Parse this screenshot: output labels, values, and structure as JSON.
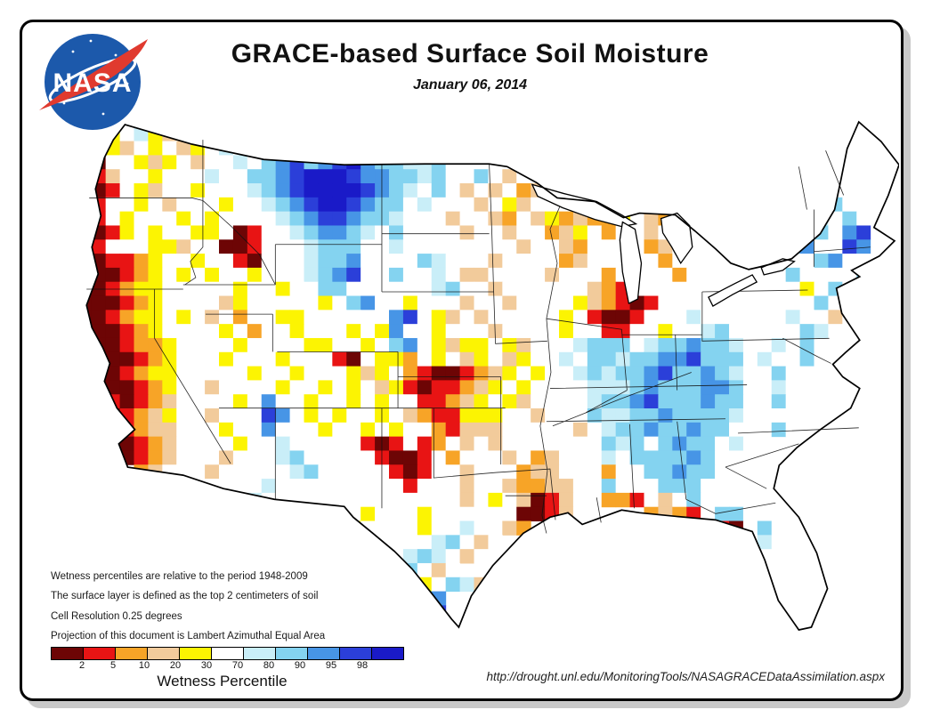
{
  "header": {
    "title": "GRACE-based Surface Soil Moisture",
    "date": "January 06, 2014"
  },
  "logo": {
    "label": "NASA",
    "blue": "#1c59ab",
    "red": "#e03a2f"
  },
  "notes": [
    "Wetness percentiles are relative to the period 1948-2009",
    "The surface layer is defined as the top 2 centimeters of soil",
    "Cell Resolution 0.25 degrees",
    "Projection of this document is Lambert Azimuthal Equal Area"
  ],
  "footer": {
    "url": "http://drought.unl.edu/MonitoringTools/NASAGRACEDataAssimilation.aspx"
  },
  "chart_data": {
    "type": "heatmap",
    "title": "GRACE-based Surface Soil Moisture",
    "date": "January 06, 2014",
    "region": "Continental United States",
    "legend": {
      "label": "Wetness Percentile",
      "ticks": [
        "2",
        "5",
        "10",
        "20",
        "30",
        "70",
        "80",
        "90",
        "95",
        "98"
      ],
      "colors": [
        "#6d0505",
        "#e81414",
        "#f7a427",
        "#f2cb9b",
        "#fcf402",
        "#ffffff",
        "#c9eef8",
        "#84d3f0",
        "#4795e6",
        "#2b3fd9",
        "#1a1ac8"
      ]
    },
    "palette": {
      "M": "#6d0505",
      "R": "#e81414",
      "O": "#f7a427",
      "T": "#f2cb9b",
      "Y": "#fcf402",
      "W": "#ffffff",
      "C": "#c9eef8",
      "L": "#84d3f0",
      "B": "#4795e6",
      "U": "#2b3fd9",
      "N": "#1a1ac8"
    },
    "palette_meaning": "M=<2, R=2-5, O=5-10, T=10-20, Y=20-30, W=30-70, C=70-80, L=80-90, B=90-95, U=95-98, N=>98 wetness percentile; dot=no data/outside US",
    "grid": {
      "cols": 60,
      "rows": 37,
      "cells": [
        "..MTYW..............................................WMWW..",
        "..RTYWCYTWWW....................................YWWTW..",
        "..MRYTWYWTYWCWLLWCLBL.............................YWWCWY..",
        "..RMWWYTYWTWWCWLBULBUNBLLCCLW.....................WYTWWCW.",
        "..MRTWWYWWWCWWLLBUNNNUBBLLCLWWLWTW...............YWWCWLWW.",
        "..MMRWYTWWYWWWCLBUNNNNUBLCWLWTWTWOT.............YWWCWWO...",
        "..MRWWYWTWWWYWWCLBUNNUBLLWCWWWTWYTW......TOY........WCWLWWW.",
        "..MRWYWWWYWYWWWWCLBUUBLLCWWWTWWTOWTYOTOOY.TOWT..WWWYWWCWLWWW",
        "..MMRYWYWWYYWMRWWCLBBLCWLWWWWTWWTWWOTYWOW.TWOW..WWWWCLLWBUW.",
        "..MRWWWYYTWWMMRWWWCLLLWWCWWWWWWWWTWWTOWWW.OTWW..WWWWLBWWUBW.",
        "..MMRROYWWYWWRMWWWCLLBWWWWLCWWWTWWWWOTWWW.WOWW..WWWLWWLBWWW.",
        "..MMMROYWYWYWWYWWWCLBUWWLWWCWTTWWWWTWWWOW.WWOW..WWWWLWWWWLW.",
        "..MMROYYWWWWWYWWYWWLLWWWWWWCLWWTWWWWWWTOR.WWWW..WWWWWYWLWWW.",
        "..MMMROYWWWWTYWWWWWYWLBWWYWWWTWWTWWWWYTORMRWWWWWWWWWWWLWWCW.",
        "..MMROYYWYWTWOWWYYWWWWWWBUWYTWTWWWWWYWRMMRWWWCWWWWWWCWWTWWW.",
        "...MMROYWWWWYWOWWYWWWYWYBWWYWWWTWWWWYWWRRWWYWWCLWWWWWLCWWW..",
        "...MMROOYWWWWYWWWWYYWWYWLBWYTYYWYTWWWCLLLWCLLBLLCWWCWLWWWW..",
        "...MMMROYWWWYWWWYWWWRMWYYOWYWTYWTYWWCWLLCLLBBULLLWCWWLW.....",
        "...MMROYYWWWWWYWWYWWWYTYWORMMROTYWYWWCLCLLBULLBLCWWLWW......",
        "...MMMROYWWTWWWWYWWYWYWTYRMRROTYWYWWWWCCCLBLLLBBLWWCW.......",
        "...MRMROTWWWWYWBWWYWWYWYWWRROTYWYTWWWWCLLBULLLBLLWWLW.......",
        "....MROTYWWTWWWUBWYWYWWYWTORRYYYWWTWWWLCCLLBLLLLCWWWW.......",
        "....MROTTWWWYWWBWWWYWWYWYWWORTTTWWWWWTWCLLBLLBLLWWWLW.......",
        "....MMROTWWWWYWWCWWWWWRMRWROWTWTWWWWWWWLCLWLBLLWCW..........",
        ".....MROTWWWTWWWCLWWWWWRMMRWOWWWTWOTWWWCWLLLLBLWWW..........",
        "......OTWWWTWWWWWCLWWWWWRMRWWTWWWOTTWWWOWWLLBLLWW...........",
        "......TOWWWWWWWCWWWWWWWWWRWWWTWWTOOTTWWLWWWLLLWWW...........",
        "............WWCWWWWWWWWWWWWWWTWYWTMRTWWOORWTWLWWW...........",
        ".............WWWWWYWWWYWWWYWWWWWWMMRTW....OTORWLLWW.........",
        "..............WWYWWWWYWWWWYWWCWWTO............TRMWLW........",
        "..............WYWWYWWWYWWWWCLWTW...............MOWCW........",
        "...............WWYWWWYWWWCLCWTW...............WMYLW........",
        "................WWWYWWYWCLWTW.................WMWL........",
        ".........................WYWLCT..............WWCW.......",
        "........................WCLB..................WCLW.......",
        "..........................LU..................LC........",
        "..........................UN..................CL........"
      ]
    }
  }
}
